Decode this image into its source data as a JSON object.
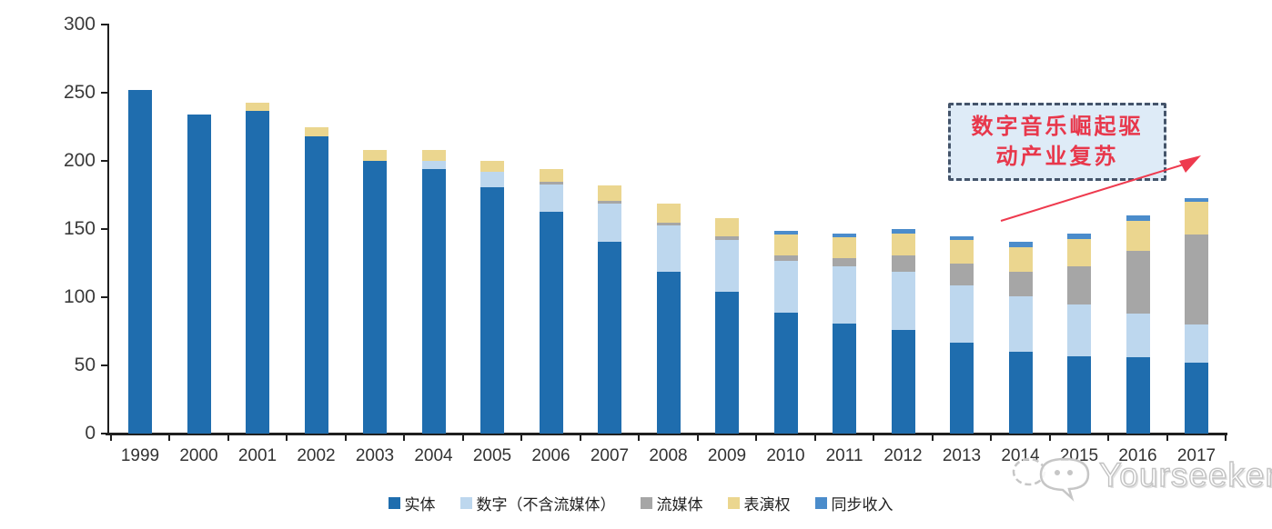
{
  "chart_data": {
    "type": "bar",
    "subtype": "stacked",
    "title": "",
    "categories": [
      "1999",
      "2000",
      "2001",
      "2002",
      "2003",
      "2004",
      "2005",
      "2006",
      "2007",
      "2008",
      "2009",
      "2010",
      "2011",
      "2012",
      "2013",
      "2014",
      "2015",
      "2016",
      "2017"
    ],
    "series": [
      {
        "name": "实体",
        "color": "#1F6DAE",
        "values": [
          252,
          234,
          237,
          218,
          200,
          194,
          181,
          163,
          141,
          119,
          104,
          89,
          81,
          76,
          67,
          60,
          57,
          56,
          52
        ]
      },
      {
        "name": "数字（不含流媒体）",
        "color": "#BDD7EE",
        "values": [
          0,
          0,
          0,
          0,
          0,
          6,
          11,
          20,
          28,
          34,
          38,
          38,
          42,
          43,
          42,
          41,
          38,
          32,
          28
        ]
      },
      {
        "name": "流媒体",
        "color": "#A6A6A6",
        "values": [
          0,
          0,
          0,
          0,
          0,
          0,
          0,
          2,
          2,
          2,
          3,
          4,
          6,
          12,
          16,
          18,
          28,
          46,
          66
        ]
      },
      {
        "name": "表演权",
        "color": "#EBD68F",
        "values": [
          0,
          0,
          6,
          7,
          8,
          8,
          8,
          9,
          11,
          14,
          13,
          15,
          15,
          16,
          17,
          18,
          20,
          22,
          24
        ]
      },
      {
        "name": "同步收入",
        "color": "#4B8CCB",
        "values": [
          0,
          0,
          0,
          0,
          0,
          0,
          0,
          0,
          0,
          0,
          0,
          3,
          3,
          3,
          3,
          4,
          4,
          4,
          3
        ]
      }
    ],
    "ylim": [
      0,
      300
    ],
    "ytick_step": 50,
    "yticks": [
      "0",
      "50",
      "100",
      "150",
      "200",
      "250",
      "300"
    ],
    "grid": false,
    "legend_position": "bottom"
  },
  "annotation": {
    "line1": "数字音乐崛起驱",
    "line2": "动产业复苏",
    "box_fill": "#DEEBF7",
    "box_border_color": "#44546A",
    "text_color": "#E8374B",
    "arrow_color": "#EE3A4E"
  },
  "watermark": {
    "text": "Yourseeker"
  }
}
